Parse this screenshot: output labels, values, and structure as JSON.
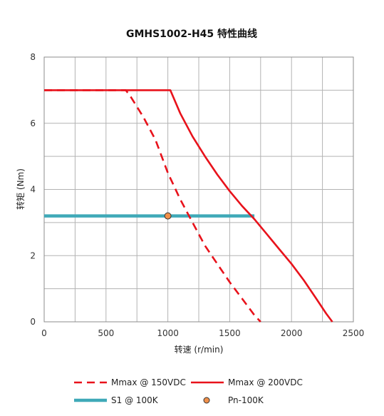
{
  "chart_data": {
    "type": "line",
    "title": "GMHS1002-H45 特性曲线",
    "xlabel": "转速 (r/min)",
    "ylabel": "转矩 (Nm)",
    "xlim": [
      0,
      2500
    ],
    "ylim": [
      0,
      8
    ],
    "xticks": [
      0,
      500,
      1000,
      1500,
      2000,
      2500
    ],
    "yticks": [
      0,
      2,
      4,
      6,
      8
    ],
    "x_minor_step": 250,
    "y_minor_step": 1,
    "grid": true,
    "legend_position": "bottom",
    "series": [
      {
        "name": "Mmax @ 150VDC",
        "color": "#e8121b",
        "style": "dashed",
        "points": [
          [
            0,
            7
          ],
          [
            660,
            7
          ],
          [
            700,
            6.8
          ],
          [
            800,
            6.2
          ],
          [
            900,
            5.5
          ],
          [
            1000,
            4.5
          ],
          [
            1100,
            3.7
          ],
          [
            1200,
            3.0
          ],
          [
            1300,
            2.3
          ],
          [
            1400,
            1.75
          ],
          [
            1500,
            1.2
          ],
          [
            1600,
            0.7
          ],
          [
            1700,
            0.2
          ],
          [
            1750,
            0
          ]
        ]
      },
      {
        "name": "Mmax @ 200VDC",
        "color": "#e8121b",
        "style": "solid",
        "points": [
          [
            0,
            7
          ],
          [
            1020,
            7
          ],
          [
            1100,
            6.3
          ],
          [
            1200,
            5.6
          ],
          [
            1300,
            5.0
          ],
          [
            1400,
            4.45
          ],
          [
            1500,
            3.95
          ],
          [
            1600,
            3.5
          ],
          [
            1700,
            3.1
          ],
          [
            1800,
            2.65
          ],
          [
            1900,
            2.2
          ],
          [
            2000,
            1.75
          ],
          [
            2100,
            1.25
          ],
          [
            2200,
            0.7
          ],
          [
            2280,
            0.25
          ],
          [
            2330,
            0
          ]
        ]
      },
      {
        "name": "S1 @ 100K",
        "color": "#3fa9b8",
        "style": "solid-thick",
        "points": [
          [
            0,
            3.2
          ],
          [
            1700,
            3.2
          ]
        ]
      },
      {
        "name": "Pn-100K",
        "color": "#f0904a",
        "style": "marker",
        "points": [
          [
            1000,
            3.2
          ]
        ]
      }
    ]
  }
}
